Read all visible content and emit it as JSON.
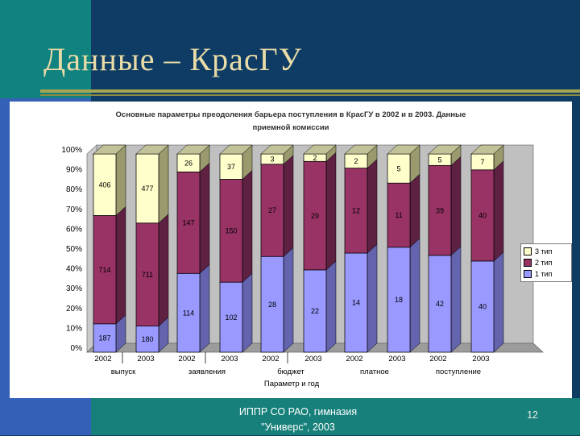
{
  "slide": {
    "title": "Данные – КрасГУ",
    "footer": {
      "line1": "ИППР СО РАО, гимназия",
      "line2": "\"Универс\", 2003",
      "page_number": "12"
    }
  },
  "chart_data": {
    "type": "bar",
    "variant": "3d-100-percent-stacked-column",
    "title": "Основные параметры преодоления барьера поступления в КрасГУ в 2002 и в 2003. Данные приемной комиссии",
    "xlabel": "Параметр и год",
    "ylabel": "",
    "ylim": [
      "0%",
      "100%"
    ],
    "grid": false,
    "legend_position": "right",
    "y_ticks": [
      "100%",
      "90%",
      "80%",
      "70%",
      "60%",
      "50%",
      "40%",
      "30%",
      "20%",
      "10%",
      "0%"
    ],
    "groups": [
      "выпуск",
      "заявления",
      "бюджет",
      "платное",
      "поступление"
    ],
    "bar_labels": [
      "2002",
      "2003",
      "2002",
      "2003",
      "2002",
      "2003",
      "2002",
      "2003",
      "2002",
      "2003"
    ],
    "series": [
      {
        "name": "1 тип",
        "color": "#9999FF",
        "side_color": "#6363AE",
        "values": [
          187,
          180,
          114,
          102,
          28,
          22,
          14,
          18,
          42,
          40
        ]
      },
      {
        "name": "2 тип",
        "color": "#993366",
        "side_color": "#5E2142",
        "values": [
          714,
          711,
          147,
          150,
          27,
          29,
          12,
          11,
          39,
          40
        ]
      },
      {
        "name": "3 тип",
        "color": "#FFFFCC",
        "side_color": "#9A9A6E",
        "top_color": "#C2C299",
        "values": [
          406,
          477,
          26,
          37,
          3,
          2,
          2,
          5,
          5,
          7
        ]
      }
    ],
    "legend": [
      {
        "label": "3 тип",
        "color": "#FFFFCC"
      },
      {
        "label": "2 тип",
        "color": "#993366"
      },
      {
        "label": "1 тип",
        "color": "#9999FF"
      }
    ]
  },
  "colors": {
    "slide_bg": "#0E3C64",
    "teal_square": "#10827F",
    "left_bar_blue": "#3560B8",
    "footer_band": "#17807A",
    "title_text": "#EADCA8",
    "rule_olive": "#A6A652",
    "chart_bg": "#FFFFFF",
    "back_wall": "#C0C0C0",
    "side_wall": "#CACACA",
    "floor": "#9C9C9C"
  }
}
